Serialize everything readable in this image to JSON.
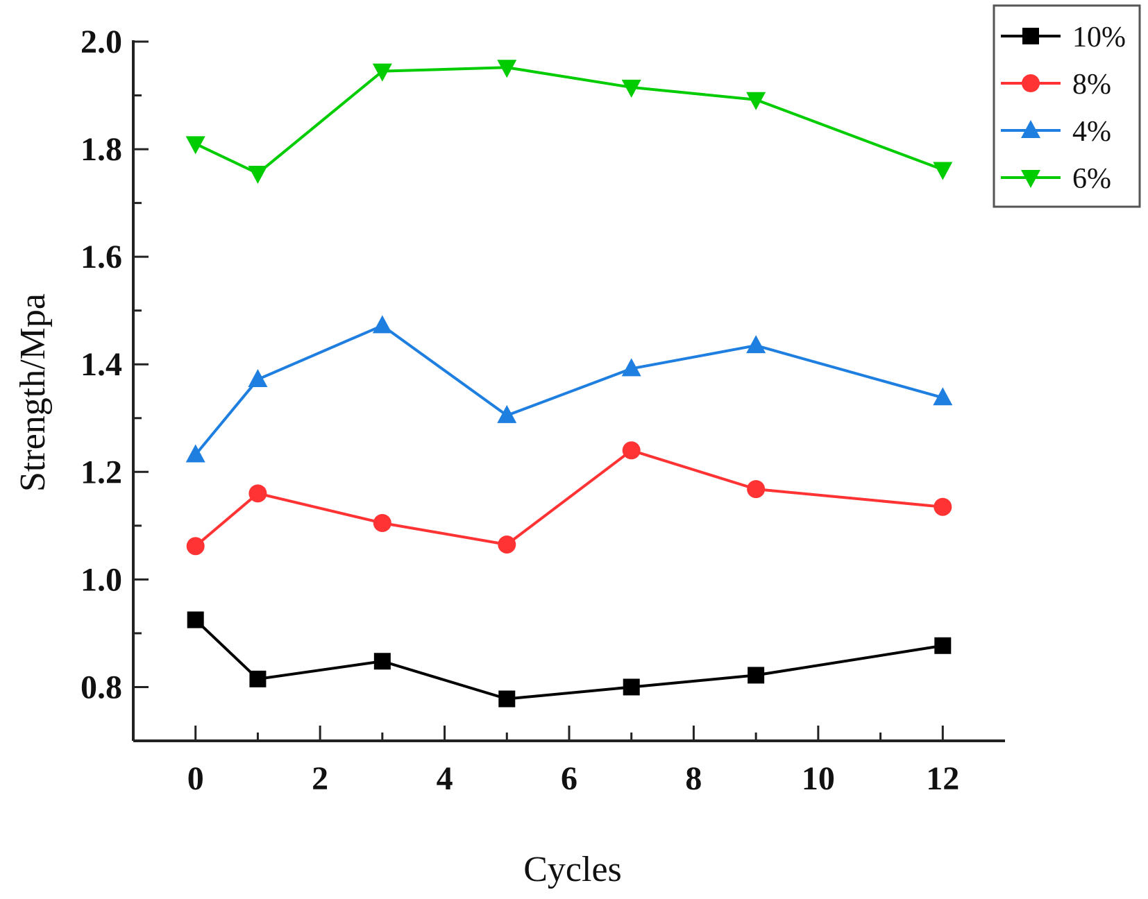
{
  "chart_data": {
    "type": "line",
    "title": "",
    "xlabel": "Cycles",
    "ylabel": "Strength/Mpa",
    "x": [
      0,
      1,
      3,
      5,
      7,
      9,
      12
    ],
    "xlim": [
      -1,
      13
    ],
    "ylim": [
      0.7,
      2.0
    ],
    "xticks": [
      0,
      2,
      4,
      6,
      8,
      10,
      12
    ],
    "yticks": [
      0.8,
      1.0,
      1.2,
      1.4,
      1.6,
      1.8,
      2.0
    ],
    "xtick_labels": [
      "0",
      "2",
      "4",
      "6",
      "8",
      "10",
      "12"
    ],
    "ytick_labels": [
      "0.8",
      "1.0",
      "1.2",
      "1.4",
      "1.6",
      "1.8",
      "2.0"
    ],
    "grid": false,
    "legend_position": "top-right",
    "series": [
      {
        "name": "10%",
        "color": "#000000",
        "marker": "square",
        "values": [
          0.925,
          0.815,
          0.848,
          0.778,
          0.8,
          0.822,
          0.877
        ]
      },
      {
        "name": "8%",
        "color": "#ff3333",
        "marker": "circle",
        "values": [
          1.062,
          1.16,
          1.105,
          1.065,
          1.24,
          1.168,
          1.135
        ]
      },
      {
        "name": "4%",
        "color": "#1e7fe0",
        "marker": "triangle-up",
        "values": [
          1.232,
          1.372,
          1.472,
          1.305,
          1.392,
          1.435,
          1.338
        ]
      },
      {
        "name": "6%",
        "color": "#00cc00",
        "marker": "triangle-down",
        "values": [
          1.81,
          1.755,
          1.945,
          1.952,
          1.915,
          1.892,
          1.762
        ]
      }
    ]
  }
}
